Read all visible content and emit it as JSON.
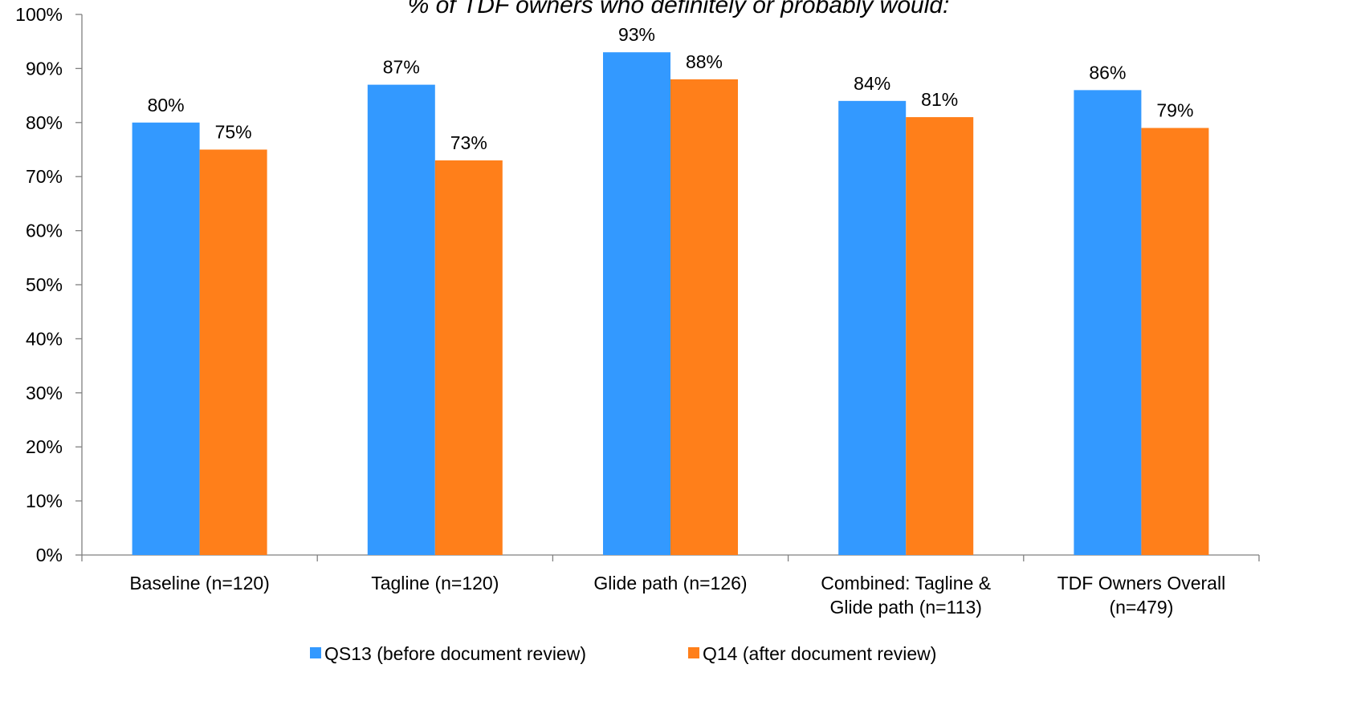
{
  "chart_data": {
    "type": "bar",
    "title": "% of TDF owners who definitely or probably would:",
    "categories": [
      [
        "Baseline (n=120)"
      ],
      [
        "Tagline (n=120)"
      ],
      [
        "Glide path (n=126)"
      ],
      [
        "Combined:  Tagline &",
        "Glide path (n=113)"
      ],
      [
        "TDF Owners Overall",
        "(n=479)"
      ]
    ],
    "series": [
      {
        "name": "QS13 (before document review)",
        "color": "#3399FF",
        "values": [
          80,
          87,
          93,
          84,
          86
        ],
        "labels": [
          "80%",
          "87%",
          "93%",
          "84%",
          "86%"
        ]
      },
      {
        "name": "Q14 (after document review)",
        "color": "#FF7F1A",
        "values": [
          75,
          73,
          88,
          81,
          79
        ],
        "labels": [
          "75%",
          "73%",
          "88%",
          "81%",
          "79%"
        ]
      }
    ],
    "ylim": [
      0,
      100
    ],
    "yticks": [
      "0%",
      "10%",
      "20%",
      "30%",
      "40%",
      "50%",
      "60%",
      "70%",
      "80%",
      "90%",
      "100%"
    ],
    "grid": false,
    "legend": "bottom"
  }
}
